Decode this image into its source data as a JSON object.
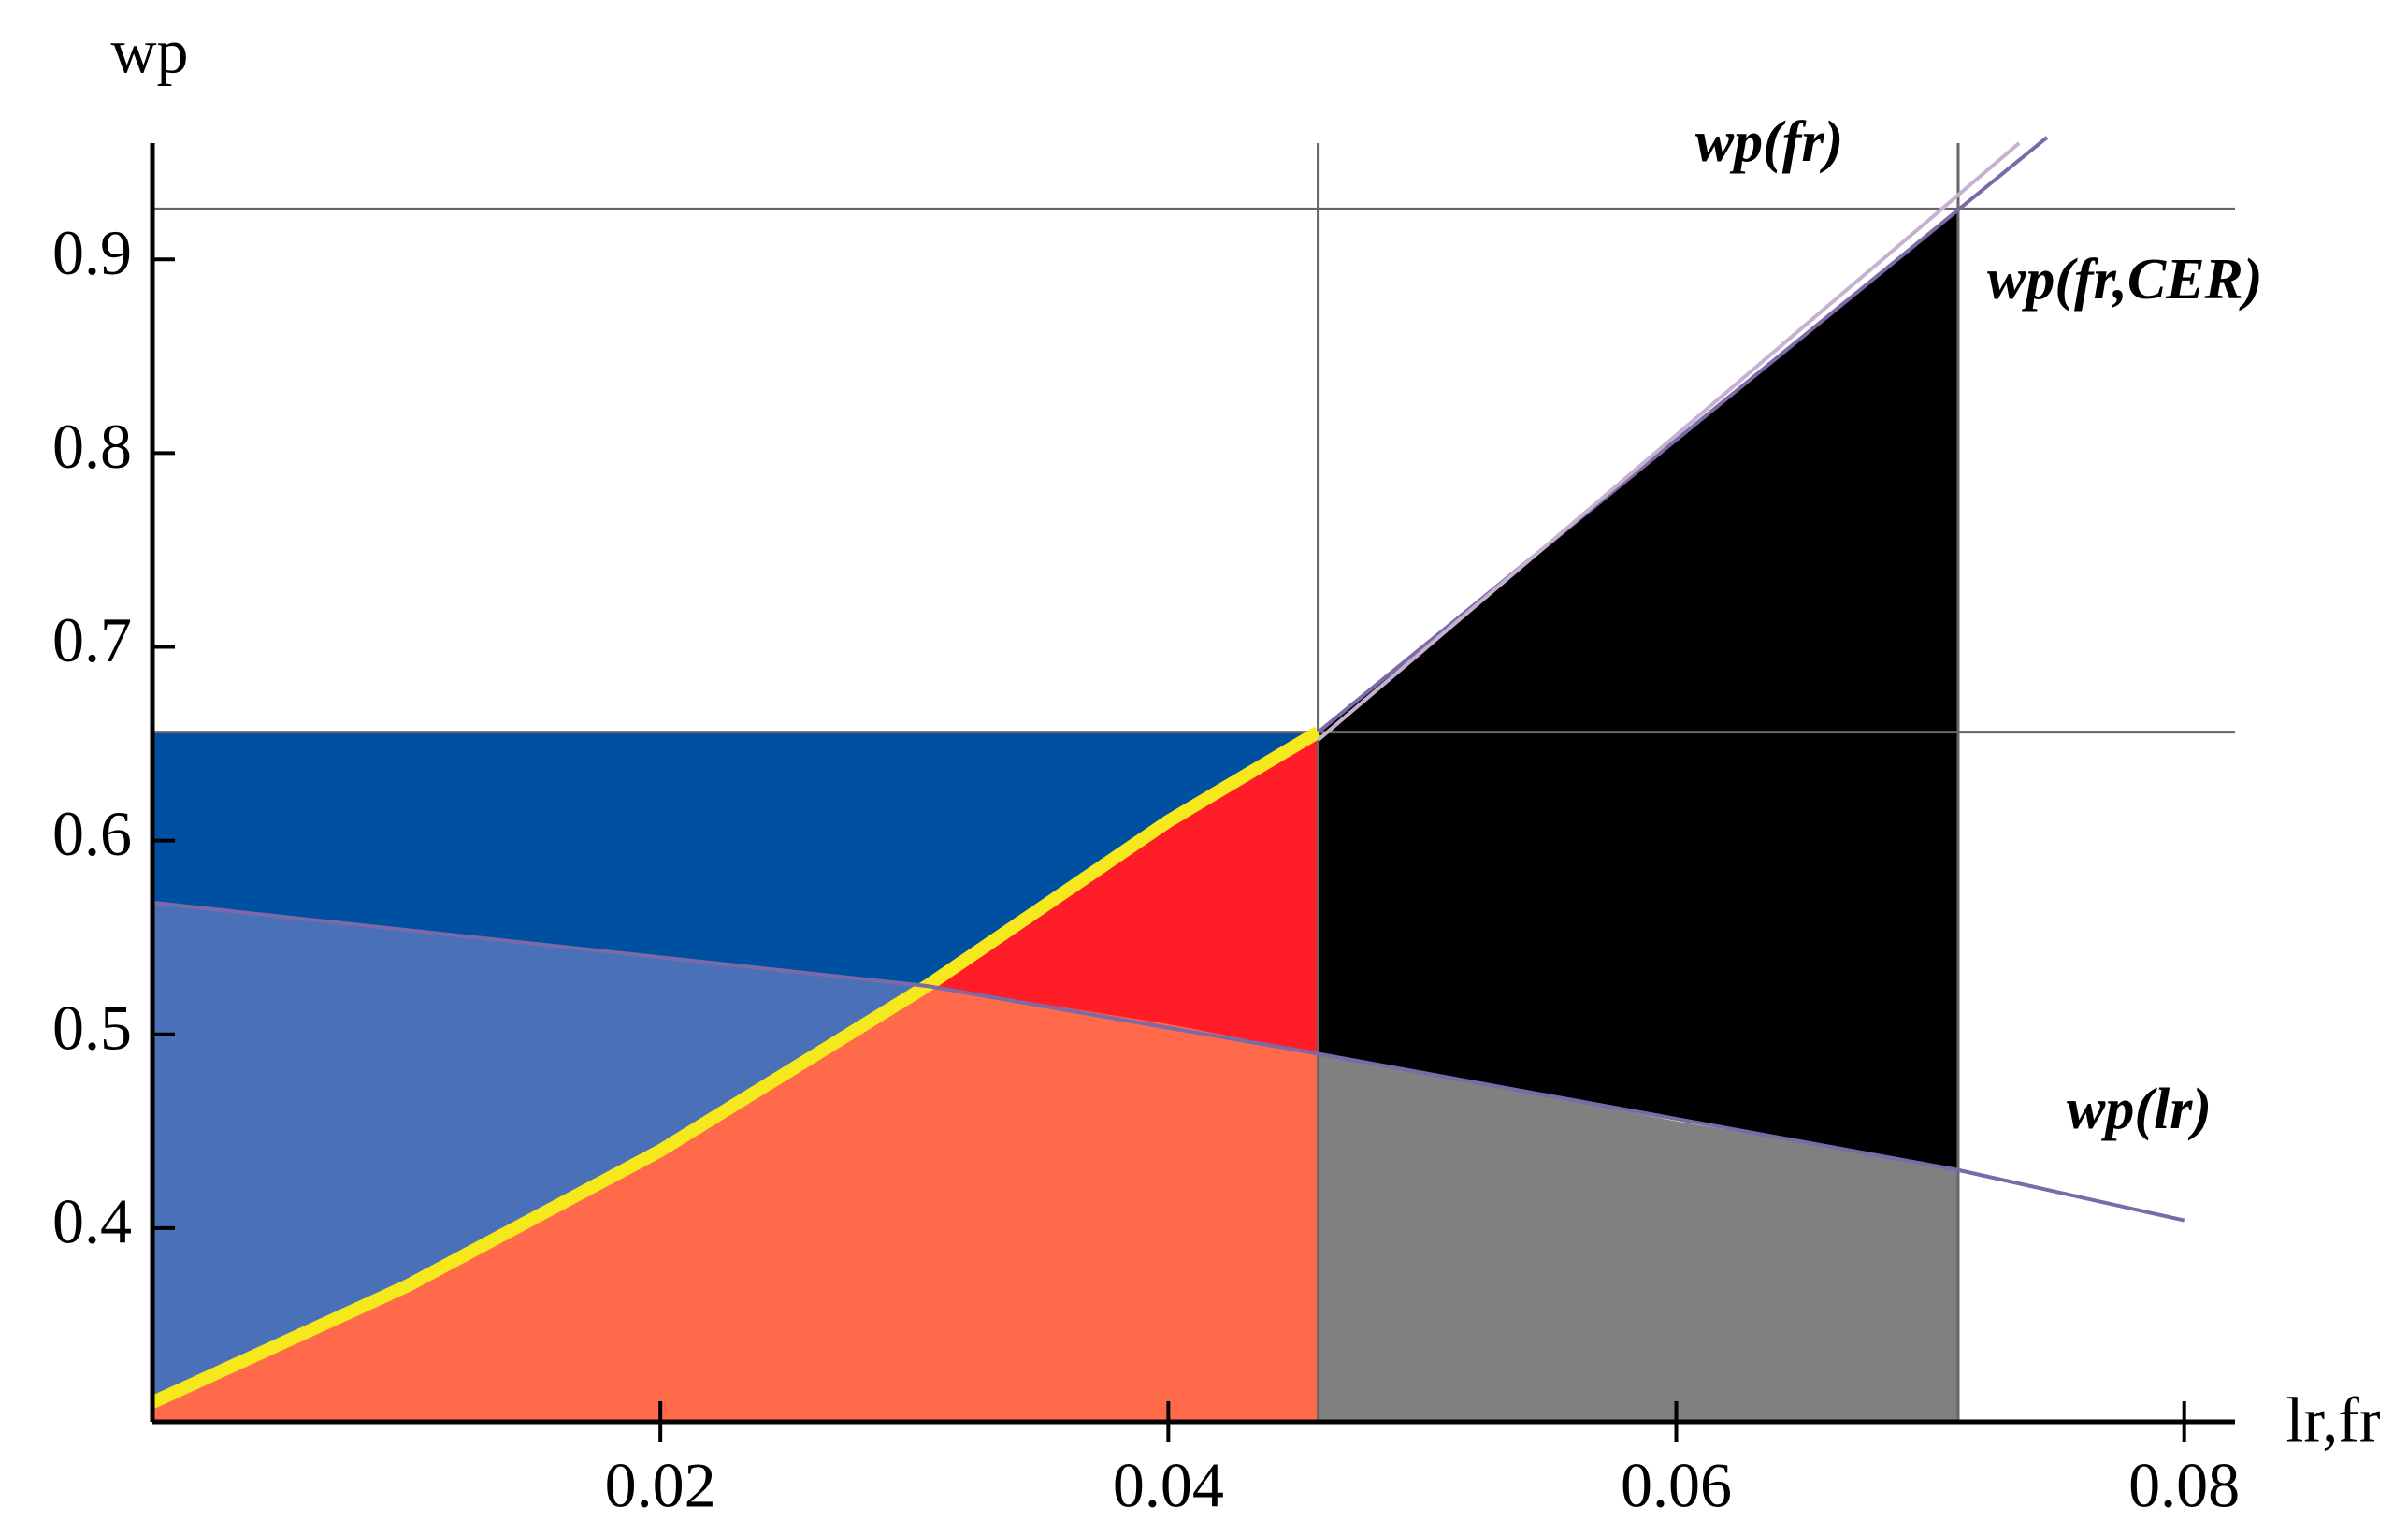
{
  "chart_data": {
    "type": "region",
    "x_label": "lr,fr",
    "y_label": "wp",
    "xlim": [
      0,
      0.082
    ],
    "ylim": [
      0.3,
      0.96
    ],
    "xticks": [
      0.02,
      0.04,
      0.06,
      0.08
    ],
    "yticks": [
      0.4,
      0.5,
      0.6,
      0.7,
      0.8,
      0.9
    ],
    "hlines": [
      0.926,
      0.656
    ],
    "vlines": [
      0.0459,
      0.0711
    ],
    "regions": [
      {
        "color": "#0050a2",
        "x": [
          0,
          0.0459,
          0.0459,
          0
        ],
        "y": [
          0.3,
          0.3,
          0.656,
          0.656
        ]
      },
      {
        "color": "#ff1e28",
        "x": [
          0.0305,
          0.04,
          0.0459,
          0.0459
        ],
        "y": [
          0.525,
          0.61,
          0.656,
          0.49
        ]
      },
      {
        "color": "#4a70b8",
        "x": [
          0,
          0.0305,
          0.02,
          0.01,
          0
        ],
        "y": [
          0.568,
          0.525,
          0.44,
          0.37,
          0.31
        ]
      },
      {
        "color": "#ff6a4a",
        "x": [
          0,
          0,
          0.01,
          0.02,
          0.0305,
          0.04,
          0.0459,
          0.0459
        ],
        "y": [
          0.3,
          0.31,
          0.37,
          0.44,
          0.525,
          0.505,
          0.49,
          0.3
        ]
      },
      {
        "color": "#000000",
        "x": [
          0.0459,
          0.0459,
          0.0711,
          0.0711
        ],
        "y": [
          0.49,
          0.656,
          0.926,
          0.43
        ]
      },
      {
        "color": "#808080",
        "x": [
          0.0459,
          0.0459,
          0.06,
          0.0711,
          0.0711
        ],
        "y": [
          0.3,
          0.49,
          0.455,
          0.43,
          0.3
        ]
      }
    ],
    "series": [
      {
        "color": "#f5e81c",
        "x": [
          0,
          0.01,
          0.02,
          0.0305,
          0.04,
          0.0459
        ],
        "values": [
          0.31,
          0.37,
          0.44,
          0.525,
          0.61,
          0.656
        ]
      },
      {
        "name": "wp(fr)",
        "color": "#7a6aa8",
        "x": [
          0.0459,
          0.0746
        ],
        "values": [
          0.656,
          0.963
        ]
      },
      {
        "name": "wp(fr,CER)",
        "color": "#c8b0d0",
        "x": [
          0.0459,
          0.0735
        ],
        "values": [
          0.652,
          0.96
        ]
      },
      {
        "name": "wp(lr)",
        "color": "#7a6aa8",
        "x": [
          0,
          0.0305,
          0.0459,
          0.0711,
          0.08
        ],
        "values": [
          0.568,
          0.525,
          0.49,
          0.43,
          0.404
        ]
      }
    ]
  }
}
